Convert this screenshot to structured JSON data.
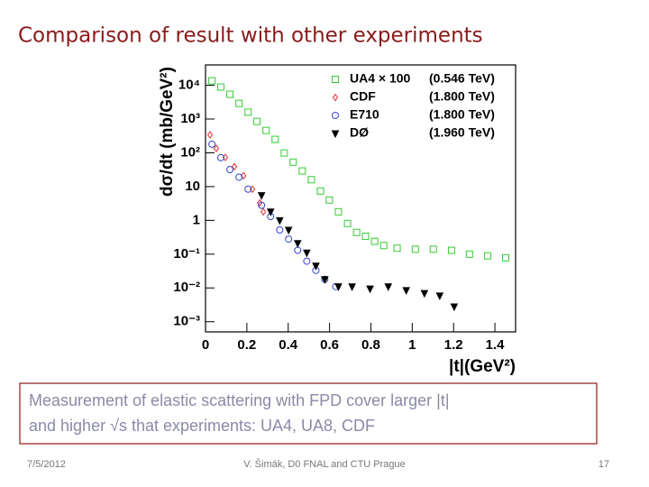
{
  "slide": {
    "title": "Comparison of result with other experiments",
    "text_lines": [
      "Measurement of  elastic scattering  with FPD  cover larger |t|",
      "and higher √s  that experiments:  UA4, UA8, CDF"
    ],
    "footer": {
      "date": "7/5/2012",
      "author": "V. Šimák, D0 FNAL and CTU Prague",
      "page": "17"
    }
  },
  "chart_data": {
    "type": "scatter",
    "x_label": "|t|(GeV²)",
    "y_label": "dσ/dt (mb/GeV²)",
    "xlim": [
      0,
      1.5
    ],
    "ylim": [
      0.0005,
      40000
    ],
    "log_y": true,
    "grid": false,
    "legend": "upper right",
    "xticks": [
      0,
      0.2,
      0.4,
      0.6,
      0.8,
      1,
      1.2,
      1.4
    ],
    "yticks": [
      {
        "value": 0.001,
        "label": "10⁻³"
      },
      {
        "value": 0.01,
        "label": "10⁻²"
      },
      {
        "value": 0.1,
        "label": "10⁻¹"
      },
      1,
      10,
      {
        "value": 100,
        "label": "10²"
      },
      {
        "value": 1000,
        "label": "10³"
      },
      {
        "value": 10000,
        "label": "10⁴"
      }
    ],
    "series": [
      {
        "name": "UA4  × 100",
        "energy": "(0.546 TeV)",
        "marker": "square",
        "color": "#33cc33",
        "x": [
          0.031,
          0.074,
          0.118,
          0.162,
          0.206,
          0.249,
          0.293,
          0.337,
          0.381,
          0.424,
          0.468,
          0.512,
          0.556,
          0.599,
          0.643,
          0.687,
          0.731,
          0.774,
          0.818,
          0.862,
          0.927,
          1.015,
          1.102,
          1.19,
          1.277,
          1.365,
          1.452
        ],
        "values": [
          13600,
          8850,
          5400,
          2900,
          1600,
          850,
          460,
          250,
          99,
          53,
          29,
          16,
          7.4,
          4,
          1.8,
          0.81,
          0.44,
          0.34,
          0.24,
          0.18,
          0.15,
          0.14,
          0.14,
          0.13,
          0.1,
          0.089,
          0.078
        ]
      },
      {
        "name": "CDF",
        "energy": "(1.800 TeV)",
        "marker": "diamond",
        "color": "#e03030",
        "x": [
          0.022,
          0.052,
          0.096,
          0.14,
          0.184,
          0.227,
          0.262,
          0.28
        ],
        "values": [
          340,
          135,
          73,
          39,
          21,
          8.4,
          3.3,
          1.8
        ]
      },
      {
        "name": "E710",
        "energy": "(1.800 TeV)",
        "marker": "circle",
        "color": "#3344cc",
        "x": [
          0.031,
          0.074,
          0.118,
          0.162,
          0.206,
          0.271,
          0.315,
          0.359,
          0.402,
          0.446,
          0.49,
          0.534,
          0.577,
          0.63
        ],
        "values": [
          180,
          72,
          32,
          19,
          8.4,
          2.8,
          1.3,
          0.52,
          0.28,
          0.13,
          0.062,
          0.033,
          0.018,
          0.011
        ]
      },
      {
        "name": "DØ",
        "energy": "(1.960 TeV)",
        "marker": "triangle",
        "color": "#000000",
        "x": [
          0.271,
          0.315,
          0.359,
          0.402,
          0.446,
          0.49,
          0.534,
          0.577,
          0.643,
          0.709,
          0.796,
          0.884,
          0.971,
          1.059,
          1.133,
          1.203
        ],
        "values": [
          5.5,
          1.8,
          1,
          0.52,
          0.21,
          0.11,
          0.045,
          0.018,
          0.011,
          0.011,
          0.0095,
          0.011,
          0.0085,
          0.007,
          0.0059,
          0.0028
        ]
      }
    ]
  }
}
